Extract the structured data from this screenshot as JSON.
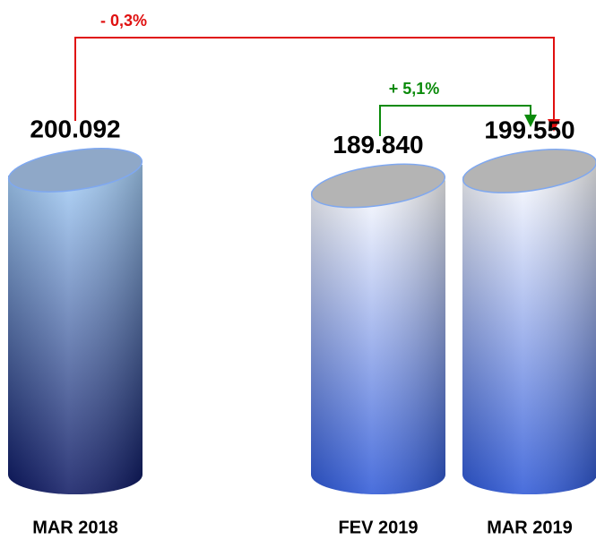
{
  "chart_data": {
    "type": "bar",
    "categories": [
      "MAR 2018",
      "FEV 2019",
      "MAR 2019"
    ],
    "values": [
      200092,
      189840,
      199550
    ],
    "value_labels": [
      "200.092",
      "189.840",
      "199.550"
    ],
    "colors": [
      [
        "#a9d3fb",
        "#0a1560"
      ],
      [
        "#ffffff",
        "#2a55d6"
      ],
      [
        "#ffffff",
        "#2a55d6"
      ]
    ],
    "annotations": [
      {
        "text": "- 0,3%",
        "color": "#e01010"
      },
      {
        "text": "+ 5,1%",
        "color": "#0a8a0a"
      }
    ]
  }
}
